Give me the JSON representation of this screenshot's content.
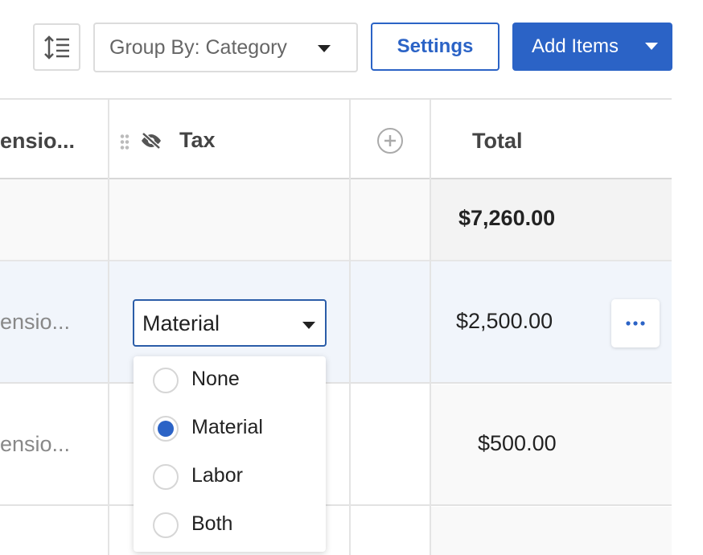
{
  "toolbar": {
    "row_height_icon": "row-height-icon",
    "group_by": "Group By: Category",
    "settings": "Settings",
    "add_items": "Add Items"
  },
  "table": {
    "columns": [
      {
        "label": "ensio..."
      },
      {
        "label": "Tax",
        "hidden": true
      },
      {
        "label": "add-column"
      },
      {
        "label": "Total"
      }
    ],
    "summary": {
      "total": "$7,260.00"
    },
    "rows": [
      {
        "col1": "ensio...",
        "tax": "Material",
        "total": "$2,500.00",
        "selected": true
      },
      {
        "col1": "ensio...",
        "total": "$500.00"
      }
    ]
  },
  "tax_dropdown": {
    "selected": "Material",
    "options": [
      "None",
      "Material",
      "Labor",
      "Both"
    ]
  },
  "colors": {
    "accent": "#2b63c6",
    "row_highlight": "#f1f5fb"
  }
}
